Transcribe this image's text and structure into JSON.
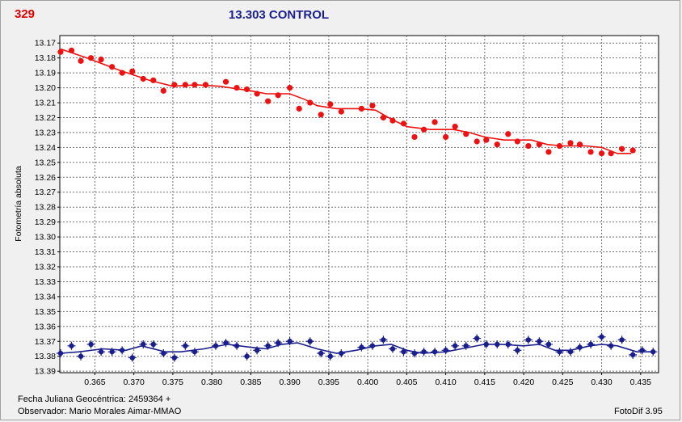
{
  "header": {
    "star_id": "329",
    "title": "13.303 CONTROL"
  },
  "footer": {
    "jd_label": "Fecha Juliana Geocéntrica: 2459364 +",
    "observer": "Observador: Mario Morales Aimar-MMAO",
    "software": "FotoDif 3.95"
  },
  "colors": {
    "variable": "#ee1111",
    "comparison": "#1a1f8c",
    "plot_background": "#ffffff",
    "grid": "#606060",
    "window_background": "#f0f0f0"
  },
  "chart_data": {
    "type": "scatter",
    "title": "13.303 CONTROL",
    "ylabel": "Fotometría absoluta",
    "xlabel": "Fecha Juliana Geocéntrica: 2459364 +",
    "xlim": [
      0.3605,
      0.4373
    ],
    "ylim": [
      13.391,
      13.165
    ],
    "y_inverted": true,
    "grid": true,
    "x_ticks": [
      "0.365",
      "0.370",
      "0.375",
      "0.380",
      "0.385",
      "0.390",
      "0.395",
      "0.400",
      "0.405",
      "0.410",
      "0.415",
      "0.420",
      "0.425",
      "0.430",
      "0.435"
    ],
    "y_ticks": [
      "13.17",
      "13.18",
      "13.19",
      "13.20",
      "13.21",
      "13.22",
      "13.23",
      "13.24",
      "13.25",
      "13.26",
      "13.27",
      "13.28",
      "13.29",
      "13.30",
      "13.31",
      "13.32",
      "13.33",
      "13.34",
      "13.35",
      "13.36",
      "13.37",
      "13.38",
      "13.39"
    ],
    "series": [
      {
        "color": "#ee1111",
        "points": [
          [
            0.3606,
            13.176
          ],
          [
            0.362,
            13.175
          ],
          [
            0.3632,
            13.182
          ],
          [
            0.3645,
            13.18
          ],
          [
            0.3658,
            13.181
          ],
          [
            0.3672,
            13.186
          ],
          [
            0.3685,
            13.19
          ],
          [
            0.3698,
            13.189
          ],
          [
            0.3712,
            13.194
          ],
          [
            0.3725,
            13.195
          ],
          [
            0.3738,
            13.202
          ],
          [
            0.3752,
            13.198
          ],
          [
            0.3766,
            13.198
          ],
          [
            0.3778,
            13.198
          ],
          [
            0.3792,
            13.198
          ],
          [
            0.3818,
            13.196
          ],
          [
            0.3832,
            13.2
          ],
          [
            0.3845,
            13.201
          ],
          [
            0.3858,
            13.204
          ],
          [
            0.3872,
            13.209
          ],
          [
            0.3885,
            13.205
          ],
          [
            0.39,
            13.2
          ],
          [
            0.3912,
            13.214
          ],
          [
            0.3926,
            13.21
          ],
          [
            0.394,
            13.218
          ],
          [
            0.3952,
            13.211
          ],
          [
            0.3966,
            13.216
          ],
          [
            0.3992,
            13.214
          ],
          [
            0.4006,
            13.212
          ],
          [
            0.402,
            13.22
          ],
          [
            0.4032,
            13.222
          ],
          [
            0.4046,
            13.224
          ],
          [
            0.406,
            13.233
          ],
          [
            0.4072,
            13.228
          ],
          [
            0.4086,
            13.223
          ],
          [
            0.41,
            13.233
          ],
          [
            0.4112,
            13.226
          ],
          [
            0.4126,
            13.231
          ],
          [
            0.414,
            13.236
          ],
          [
            0.4152,
            13.235
          ],
          [
            0.4166,
            13.238
          ],
          [
            0.418,
            13.231
          ],
          [
            0.4192,
            13.236
          ],
          [
            0.4206,
            13.239
          ],
          [
            0.422,
            13.238
          ],
          [
            0.4232,
            13.243
          ],
          [
            0.4246,
            13.239
          ],
          [
            0.426,
            13.237
          ],
          [
            0.4272,
            13.238
          ],
          [
            0.4286,
            13.243
          ],
          [
            0.43,
            13.244
          ],
          [
            0.4312,
            13.244
          ],
          [
            0.4326,
            13.241
          ],
          [
            0.434,
            13.242
          ]
        ],
        "trend": [
          [
            0.3606,
            13.174
          ],
          [
            0.364,
            13.18
          ],
          [
            0.368,
            13.188
          ],
          [
            0.372,
            13.195
          ],
          [
            0.375,
            13.199
          ],
          [
            0.378,
            13.198
          ],
          [
            0.381,
            13.199
          ],
          [
            0.385,
            13.202
          ],
          [
            0.387,
            13.204
          ],
          [
            0.39,
            13.204
          ],
          [
            0.392,
            13.208
          ],
          [
            0.3935,
            13.212
          ],
          [
            0.396,
            13.214
          ],
          [
            0.399,
            13.214
          ],
          [
            0.401,
            13.215
          ],
          [
            0.403,
            13.221
          ],
          [
            0.405,
            13.226
          ],
          [
            0.408,
            13.228
          ],
          [
            0.411,
            13.228
          ],
          [
            0.413,
            13.23
          ],
          [
            0.415,
            13.233
          ],
          [
            0.4175,
            13.235
          ],
          [
            0.421,
            13.235
          ],
          [
            0.423,
            13.238
          ],
          [
            0.425,
            13.239
          ],
          [
            0.428,
            13.239
          ],
          [
            0.43,
            13.24
          ],
          [
            0.432,
            13.244
          ],
          [
            0.4338,
            13.244
          ]
        ]
      },
      {
        "color": "#1a1f8c",
        "points": [
          [
            0.3606,
            13.378
          ],
          [
            0.362,
            13.373
          ],
          [
            0.3632,
            13.38
          ],
          [
            0.3645,
            13.372
          ],
          [
            0.3658,
            13.377
          ],
          [
            0.3672,
            13.377
          ],
          [
            0.3685,
            13.376
          ],
          [
            0.3698,
            13.381
          ],
          [
            0.3712,
            13.372
          ],
          [
            0.3725,
            13.372
          ],
          [
            0.3738,
            13.378
          ],
          [
            0.3752,
            13.381
          ],
          [
            0.3766,
            13.373
          ],
          [
            0.3778,
            13.377
          ],
          [
            0.3805,
            13.373
          ],
          [
            0.3818,
            13.371
          ],
          [
            0.3832,
            13.373
          ],
          [
            0.3845,
            13.38
          ],
          [
            0.3858,
            13.376
          ],
          [
            0.3872,
            13.373
          ],
          [
            0.3885,
            13.371
          ],
          [
            0.39,
            13.37
          ],
          [
            0.3926,
            13.37
          ],
          [
            0.394,
            13.378
          ],
          [
            0.3952,
            13.38
          ],
          [
            0.3966,
            13.378
          ],
          [
            0.3992,
            13.374
          ],
          [
            0.4006,
            13.373
          ],
          [
            0.402,
            13.369
          ],
          [
            0.4032,
            13.375
          ],
          [
            0.4046,
            13.377
          ],
          [
            0.406,
            13.378
          ],
          [
            0.4072,
            13.377
          ],
          [
            0.4086,
            13.377
          ],
          [
            0.41,
            13.376
          ],
          [
            0.4112,
            13.373
          ],
          [
            0.4126,
            13.373
          ],
          [
            0.414,
            13.368
          ],
          [
            0.4152,
            13.372
          ],
          [
            0.4166,
            13.372
          ],
          [
            0.418,
            13.372
          ],
          [
            0.4192,
            13.376
          ],
          [
            0.4206,
            13.369
          ],
          [
            0.422,
            13.37
          ],
          [
            0.4232,
            13.372
          ],
          [
            0.4246,
            13.377
          ],
          [
            0.426,
            13.377
          ],
          [
            0.4272,
            13.374
          ],
          [
            0.4286,
            13.372
          ],
          [
            0.43,
            13.367
          ],
          [
            0.4312,
            13.373
          ],
          [
            0.4326,
            13.369
          ],
          [
            0.434,
            13.379
          ],
          [
            0.4352,
            13.376
          ],
          [
            0.4366,
            13.377
          ]
        ],
        "trend": [
          [
            0.3606,
            13.378
          ],
          [
            0.363,
            13.377
          ],
          [
            0.366,
            13.375
          ],
          [
            0.369,
            13.376
          ],
          [
            0.371,
            13.373
          ],
          [
            0.374,
            13.377
          ],
          [
            0.376,
            13.377
          ],
          [
            0.379,
            13.375
          ],
          [
            0.382,
            13.372
          ],
          [
            0.385,
            13.374
          ],
          [
            0.387,
            13.375
          ],
          [
            0.389,
            13.372
          ],
          [
            0.391,
            13.371
          ],
          [
            0.3935,
            13.375
          ],
          [
            0.396,
            13.378
          ],
          [
            0.3985,
            13.376
          ],
          [
            0.401,
            13.373
          ],
          [
            0.403,
            13.372
          ],
          [
            0.405,
            13.376
          ],
          [
            0.407,
            13.378
          ],
          [
            0.41,
            13.377
          ],
          [
            0.413,
            13.374
          ],
          [
            0.415,
            13.372
          ],
          [
            0.417,
            13.372
          ],
          [
            0.42,
            13.373
          ],
          [
            0.422,
            13.372
          ],
          [
            0.424,
            13.376
          ],
          [
            0.426,
            13.376
          ],
          [
            0.4285,
            13.373
          ],
          [
            0.43,
            13.372
          ],
          [
            0.432,
            13.373
          ],
          [
            0.4345,
            13.377
          ],
          [
            0.4366,
            13.377
          ]
        ]
      }
    ]
  }
}
